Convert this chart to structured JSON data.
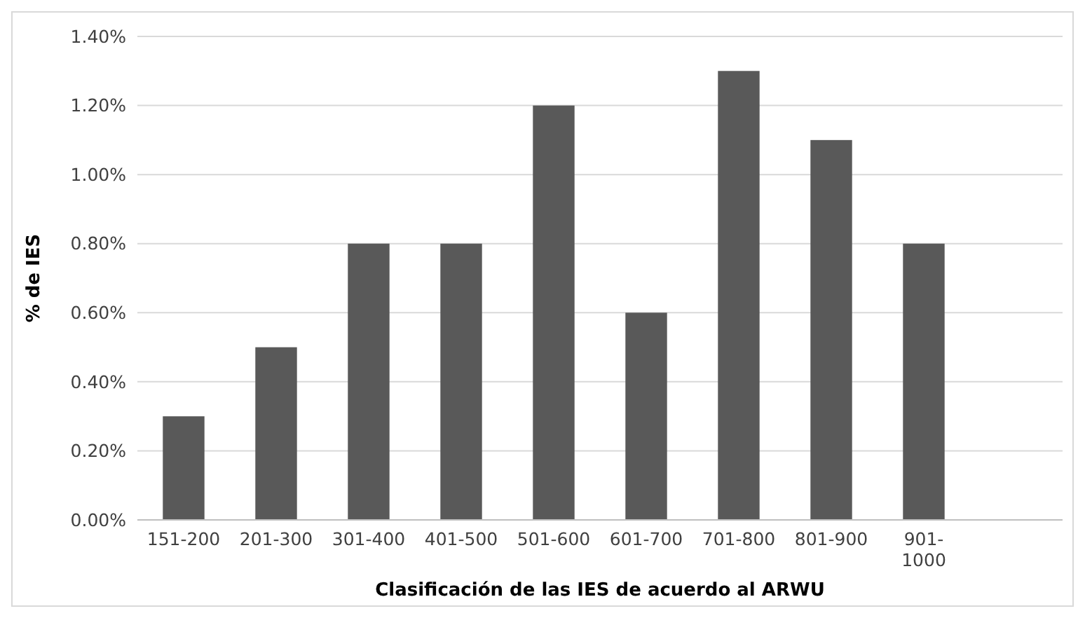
{
  "chart_data": {
    "type": "bar",
    "xlabel": "Clasificación de las IES de acuerdo al ARWU",
    "ylabel": "% de IES",
    "categories": [
      "151-200",
      "201-300",
      "301-400",
      "401-500",
      "501-600",
      "601-700",
      "701-800",
      "801-900",
      "901-1000",
      null
    ],
    "values": [
      0.3,
      0.5,
      0.8,
      0.8,
      1.2,
      0.6,
      1.3,
      1.1,
      0.8,
      null
    ],
    "color": "#595959",
    "ylim": [
      0,
      1.4
    ],
    "yticks": [
      {
        "value": 0,
        "label": "0.00%"
      },
      {
        "value": 0.2,
        "label": "0.20%"
      },
      {
        "value": 0.4,
        "label": "0.40%"
      },
      {
        "value": 0.6,
        "label": "0.60%"
      },
      {
        "value": 0.8,
        "label": "0.80%"
      },
      {
        "value": 1,
        "label": "1.00%"
      },
      {
        "value": 1.2,
        "label": "1.20%"
      },
      {
        "value": 1.4,
        "label": "1.40%"
      }
    ],
    "grid": "y"
  }
}
